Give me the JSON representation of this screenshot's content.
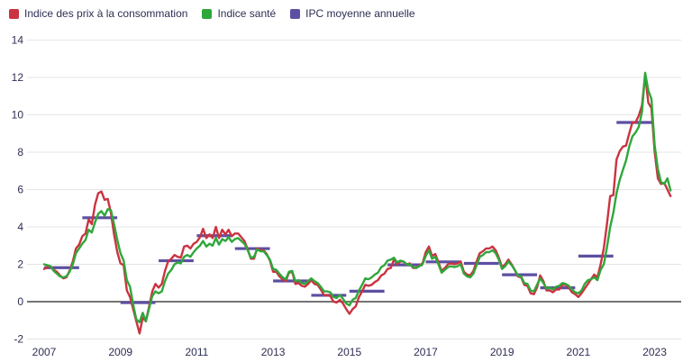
{
  "legend": {
    "items": [
      {
        "label": "Indice des prix à la consommation",
        "color": "#cb3341"
      },
      {
        "label": "Indice santé",
        "color": "#2fa73a"
      },
      {
        "label": "IPC moyenne annuelle",
        "color": "#5d4fa1"
      }
    ]
  },
  "colors": {
    "cpi_line": "#cb3341",
    "health_line": "#2fa73a",
    "annual_avg": "#5d4fa1",
    "grid": "#e4e4e4",
    "zero_line": "#606060",
    "axis_text": "#2e2e55"
  },
  "chart_data": {
    "type": "line",
    "title": "",
    "xlabel": "",
    "ylabel": "",
    "x_start": {
      "year": 2007,
      "month": 1
    },
    "x_tick_years": [
      2007,
      2009,
      2011,
      2013,
      2015,
      2017,
      2019,
      2021,
      2023
    ],
    "y_ticks": [
      -2,
      0,
      2,
      4,
      6,
      8,
      10,
      12,
      14
    ],
    "ylim": [
      -2,
      14
    ],
    "grid": true,
    "legend_position": "top-left",
    "series": [
      {
        "name": "Indice des prix à la consommation",
        "color": "#cb3341",
        "frequency": "monthly",
        "values": [
          1.75,
          1.85,
          1.9,
          1.7,
          1.6,
          1.4,
          1.25,
          1.3,
          1.65,
          2.15,
          2.85,
          3.05,
          3.5,
          3.65,
          4.4,
          4.15,
          5.2,
          5.8,
          5.9,
          5.45,
          5.5,
          4.75,
          3.6,
          2.65,
          2.05,
          1.95,
          0.6,
          0.25,
          -0.4,
          -1.05,
          -1.7,
          -0.85,
          -1.05,
          -0.25,
          0.55,
          0.95,
          0.75,
          0.95,
          1.65,
          2.15,
          2.3,
          2.5,
          2.4,
          2.35,
          2.95,
          3.0,
          2.85,
          3.1,
          3.2,
          3.45,
          3.9,
          3.4,
          3.6,
          3.4,
          4.0,
          3.4,
          3.85,
          3.6,
          3.85,
          3.5,
          3.65,
          3.65,
          3.45,
          3.25,
          2.8,
          2.3,
          2.3,
          2.85,
          2.75,
          2.75,
          2.55,
          2.2,
          1.6,
          1.6,
          1.35,
          1.2,
          1.1,
          1.55,
          1.6,
          0.95,
          1.0,
          0.85,
          0.8,
          0.95,
          1.15,
          0.95,
          0.9,
          0.65,
          0.35,
          0.35,
          0.3,
          0.0,
          -0.05,
          0.1,
          -0.1,
          -0.4,
          -0.65,
          -0.4,
          -0.25,
          0.25,
          0.55,
          0.9,
          0.85,
          0.9,
          1.05,
          1.15,
          1.4,
          1.5,
          1.75,
          1.8,
          2.25,
          2.0,
          2.15,
          2.15,
          2.0,
          2.05,
          1.8,
          1.8,
          1.95,
          2.05,
          2.65,
          2.95,
          2.45,
          2.55,
          2.1,
          1.65,
          1.8,
          2.0,
          2.05,
          2.0,
          2.05,
          2.15,
          1.6,
          1.45,
          1.4,
          1.65,
          2.15,
          2.6,
          2.7,
          2.85,
          2.85,
          2.95,
          2.75,
          2.35,
          1.85,
          2.0,
          2.25,
          2.0,
          1.7,
          1.35,
          1.3,
          0.9,
          0.85,
          0.45,
          0.4,
          0.75,
          1.4,
          1.1,
          0.6,
          0.6,
          0.5,
          0.65,
          0.65,
          0.9,
          0.9,
          0.75,
          0.5,
          0.4,
          0.25,
          0.45,
          0.7,
          0.95,
          1.2,
          1.45,
          1.3,
          2.0,
          2.85,
          4.15,
          5.65,
          5.7,
          7.6,
          8.05,
          8.3,
          8.35,
          9.0,
          9.6,
          9.6,
          9.95,
          10.5,
          12.15,
          10.65,
          10.35,
          8.0,
          6.6,
          6.3,
          6.35,
          6.0,
          5.65
        ]
      },
      {
        "name": "Indice santé",
        "color": "#2fa73a",
        "frequency": "monthly",
        "values": [
          2.0,
          1.95,
          1.9,
          1.65,
          1.5,
          1.35,
          1.3,
          1.35,
          1.6,
          2.0,
          2.6,
          2.85,
          3.1,
          3.3,
          3.85,
          3.7,
          4.25,
          4.7,
          4.85,
          4.6,
          4.95,
          4.9,
          4.15,
          3.3,
          2.6,
          2.2,
          1.15,
          0.8,
          -0.15,
          -0.95,
          -1.1,
          -0.6,
          -1.05,
          -0.35,
          0.3,
          0.55,
          0.45,
          0.55,
          1.1,
          1.5,
          1.7,
          2.0,
          2.1,
          2.05,
          2.4,
          2.5,
          2.4,
          2.65,
          2.85,
          3.0,
          3.25,
          2.95,
          3.1,
          3.0,
          3.4,
          3.05,
          3.35,
          3.25,
          3.45,
          3.2,
          3.35,
          3.4,
          3.25,
          3.1,
          2.75,
          2.35,
          2.4,
          2.8,
          2.7,
          2.7,
          2.5,
          2.25,
          1.75,
          1.7,
          1.5,
          1.3,
          1.2,
          1.6,
          1.65,
          1.1,
          1.15,
          1.0,
          0.95,
          1.1,
          1.25,
          1.1,
          1.0,
          0.8,
          0.55,
          0.55,
          0.5,
          0.25,
          0.2,
          0.35,
          0.15,
          -0.1,
          -0.2,
          0.1,
          0.2,
          0.6,
          0.9,
          1.25,
          1.2,
          1.3,
          1.45,
          1.55,
          1.85,
          1.95,
          2.2,
          2.25,
          2.35,
          2.1,
          2.2,
          2.15,
          2.0,
          2.0,
          1.85,
          1.8,
          1.9,
          2.0,
          2.45,
          2.75,
          2.3,
          2.4,
          2.0,
          1.55,
          1.7,
          1.85,
          1.9,
          1.85,
          1.9,
          2.0,
          1.5,
          1.35,
          1.3,
          1.5,
          1.95,
          2.4,
          2.5,
          2.65,
          2.65,
          2.75,
          2.6,
          2.25,
          1.75,
          1.9,
          2.15,
          1.95,
          1.7,
          1.4,
          1.35,
          1.0,
          0.95,
          0.6,
          0.55,
          0.9,
          1.25,
          1.0,
          0.7,
          0.75,
          0.65,
          0.8,
          0.85,
          1.0,
          0.95,
          0.85,
          0.65,
          0.5,
          0.45,
          0.6,
          0.95,
          1.15,
          1.2,
          1.3,
          1.15,
          1.7,
          2.0,
          2.9,
          4.0,
          4.75,
          5.8,
          6.5,
          7.05,
          7.55,
          8.3,
          8.85,
          9.05,
          9.35,
          10.15,
          12.25,
          11.3,
          10.85,
          8.35,
          7.1,
          6.4,
          6.3,
          6.6,
          5.95
        ]
      },
      {
        "name": "IPC moyenne annuelle",
        "color": "#5d4fa1",
        "frequency": "yearly-segment",
        "years": [
          2007,
          2008,
          2009,
          2010,
          2011,
          2012,
          2013,
          2014,
          2015,
          2016,
          2017,
          2018,
          2019,
          2020,
          2021,
          2022
        ],
        "values": [
          1.82,
          4.49,
          -0.05,
          2.19,
          3.53,
          2.84,
          1.11,
          0.34,
          0.56,
          1.97,
          2.13,
          2.05,
          1.44,
          0.74,
          2.44,
          9.59
        ]
      }
    ]
  }
}
